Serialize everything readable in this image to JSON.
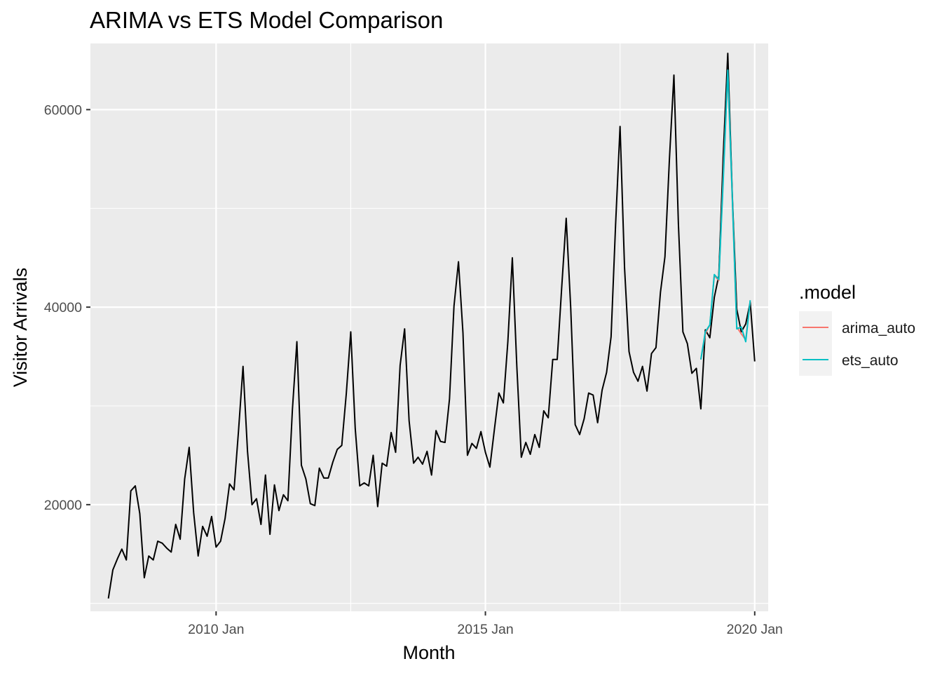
{
  "chart_data": {
    "type": "line",
    "title": "ARIMA vs ETS Model Comparison",
    "xlabel": "Month",
    "ylabel": "Visitor Arrivals",
    "x_ticks": [
      {
        "date": "2010-01",
        "label": "2010 Jan"
      },
      {
        "date": "2015-01",
        "label": "2015 Jan"
      },
      {
        "date": "2020-01",
        "label": "2020 Jan"
      }
    ],
    "y_ticks": [
      20000,
      40000,
      60000
    ],
    "ylim": [
      9200,
      66700
    ],
    "xlim": [
      "2007-09",
      "2020-04"
    ],
    "grid": true,
    "legend": {
      "title": ".model",
      "position": "right",
      "entries": [
        {
          "label": "arima_auto",
          "color": "#F8766D"
        },
        {
          "label": "ets_auto",
          "color": "#00BFC4"
        }
      ]
    },
    "series": [
      {
        "color": "#000000",
        "start": "2008-01",
        "values": [
          10500,
          13400,
          14500,
          15500,
          14400,
          21400,
          21900,
          19100,
          12600,
          14800,
          14400,
          16300,
          16100,
          15600,
          15200,
          18000,
          16500,
          22600,
          25800,
          19200,
          14800,
          17800,
          16800,
          18800,
          15700,
          16300,
          18600,
          22100,
          21500,
          27500,
          34000,
          25400,
          20000,
          20600,
          18000,
          23000,
          17000,
          22000,
          19400,
          21000,
          20400,
          29600,
          36500,
          24000,
          22600,
          20100,
          19900,
          23700,
          22700,
          22700,
          24300,
          25600,
          26000,
          31200,
          37500,
          27700,
          21900,
          22200,
          21900,
          25000,
          19800,
          24200,
          23900,
          27300,
          25300,
          34100,
          37800,
          28500,
          24200,
          24800,
          24100,
          25400,
          23000,
          27500,
          26400,
          26300,
          30700,
          40100,
          44600,
          37400,
          25000,
          26200,
          25700,
          27400,
          25300,
          23800,
          27600,
          31300,
          30300,
          36500,
          45000,
          34000,
          24800,
          26300,
          25100,
          27100,
          25800,
          29500,
          28800,
          34700,
          34700,
          42000,
          49000,
          40000,
          28100,
          27100,
          28700,
          31300,
          31100,
          28300,
          31600,
          33400,
          37000,
          48300,
          58300,
          44000,
          35500,
          33400,
          32500,
          34000,
          31500,
          35300,
          35900,
          41500,
          45100,
          55000,
          63500,
          48400,
          37500,
          36300,
          33300,
          33800,
          29700,
          37700,
          36900,
          41000,
          43200,
          55500,
          65700,
          51400,
          39800,
          37500,
          38300,
          40500,
          34500
        ]
      },
      {
        "name": "arima_auto",
        "color": "#F8766D",
        "start": "2019-01",
        "values": [
          34700,
          37300,
          38200,
          43200,
          42700,
          53500,
          63700,
          51000,
          38000,
          37300,
          36700,
          40600
        ]
      },
      {
        "name": "ets_auto",
        "color": "#00BFC4",
        "start": "2019-01",
        "values": [
          34700,
          37500,
          38200,
          43300,
          42800,
          53000,
          64000,
          51200,
          37800,
          38000,
          36500,
          40700
        ]
      }
    ]
  }
}
